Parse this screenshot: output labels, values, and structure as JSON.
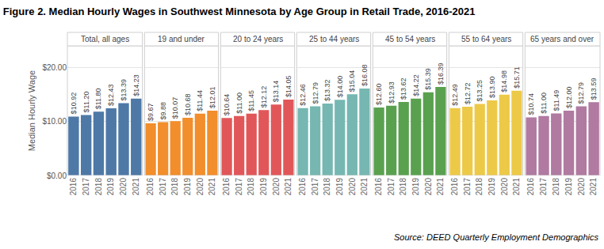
{
  "chart_data": {
    "type": "bar",
    "title": "Figure 2. Median Hourly Wages in Southwest Minnesota by Age Group in Retail Trade, 2016-2021",
    "ylabel": "Median Hourly Wage",
    "annotations": [
      "Source: DEED Quarterly Employment Demographics"
    ],
    "categories": [
      "2016",
      "2017",
      "2018",
      "2019",
      "2020",
      "2021"
    ],
    "ylim": [
      0,
      24
    ],
    "yticks": [
      {
        "value": 0,
        "label": "$0.00"
      },
      {
        "value": 10,
        "label": "$10.00"
      },
      {
        "value": 20,
        "label": "$20.00"
      }
    ],
    "grid": true,
    "data_labels": true,
    "series": [
      {
        "name": "Total, all ages",
        "color": "#4e79a7",
        "values": [
          10.92,
          11.2,
          11.8,
          12.43,
          13.39,
          14.23
        ],
        "value_labels": [
          "$10.92",
          "$11.20",
          "$11.80",
          "$12.43",
          "$13.39",
          "$14.23"
        ]
      },
      {
        "name": "19 and under",
        "color": "#f28e2b",
        "values": [
          9.67,
          9.88,
          10.07,
          10.68,
          11.44,
          12.01
        ],
        "value_labels": [
          "$9.67",
          "$9.88",
          "$10.07",
          "$10.68",
          "$11.44",
          "$12.01"
        ]
      },
      {
        "name": "20 to 24 years",
        "color": "#e15759",
        "values": [
          10.64,
          11.0,
          11.45,
          12.12,
          13.14,
          14.05
        ],
        "value_labels": [
          "$10.64",
          "$11.00",
          "$11.45",
          "$12.12",
          "$13.14",
          "$14.05"
        ]
      },
      {
        "name": "25 to 44 years",
        "color": "#76b7b2",
        "values": [
          12.46,
          12.79,
          13.32,
          14.0,
          15.04,
          16.08
        ],
        "value_labels": [
          "$12.46",
          "$12.79",
          "$13.32",
          "$14.00",
          "$15.04",
          "$16.08"
        ]
      },
      {
        "name": "45 to 54 years",
        "color": "#59a14f",
        "values": [
          12.6,
          12.93,
          13.62,
          14.22,
          15.39,
          16.39
        ],
        "value_labels": [
          "$12.60",
          "$12.93",
          "$13.62",
          "$14.22",
          "$15.39",
          "$16.39"
        ]
      },
      {
        "name": "55 to 64 years",
        "color": "#edc948",
        "values": [
          12.49,
          12.72,
          13.25,
          13.9,
          14.98,
          15.71
        ],
        "value_labels": [
          "$12.49",
          "$12.72",
          "$13.25",
          "$13.90",
          "$14.98",
          "$15.71"
        ]
      },
      {
        "name": "65 years and over",
        "color": "#b07aa1",
        "values": [
          10.74,
          11.0,
          11.49,
          12.0,
          12.79,
          13.59
        ],
        "value_labels": [
          "$10.74",
          "$11.00",
          "$11.49",
          "$12.00",
          "$12.79",
          "$13.59"
        ]
      }
    ]
  }
}
